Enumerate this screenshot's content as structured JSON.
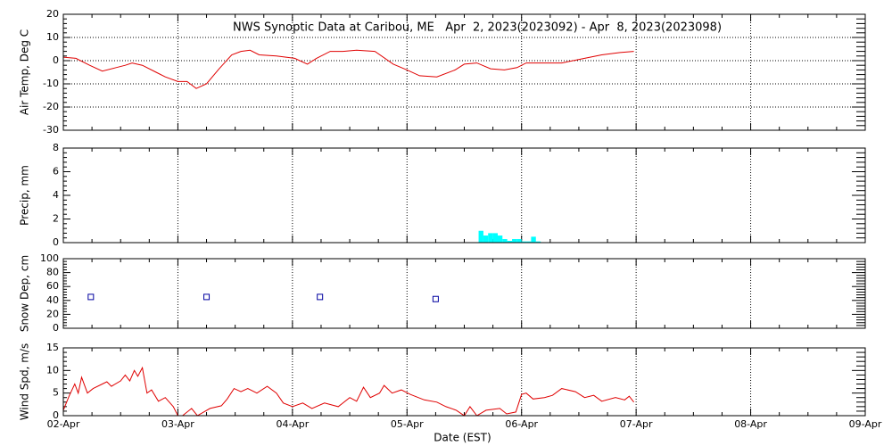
{
  "chart_data": [
    {
      "type": "line",
      "title": "NWS Synoptic Data at Caribou, ME   Apr  2, 2023(2023092) - Apr  8, 2023(2023098)",
      "ylabel": "Air Temp, Deg C",
      "color": "#e00000",
      "grid": "both",
      "ylim": [
        -30,
        20
      ],
      "yticks": [
        -30,
        -20,
        -10,
        0,
        10,
        20
      ],
      "x": [
        0,
        0.11,
        0.23,
        0.34,
        0.46,
        0.54,
        0.6,
        0.69,
        0.81,
        0.89,
        1.0,
        1.08,
        1.16,
        1.25,
        1.36,
        1.47,
        1.55,
        1.63,
        1.71,
        1.86,
        2.02,
        2.13,
        2.21,
        2.33,
        2.44,
        2.56,
        2.72,
        2.88,
        3.0,
        3.11,
        3.26,
        3.42,
        3.5,
        3.61,
        3.73,
        3.85,
        3.96,
        4.04,
        4.2,
        4.35,
        4.55,
        4.7,
        4.86,
        4.98
      ],
      "values": [
        1.5,
        1,
        -2,
        -4.5,
        -3,
        -2,
        -1,
        -2,
        -5,
        -7,
        -9,
        -9,
        -12,
        -10,
        -3.5,
        2.5,
        4,
        4.5,
        2.5,
        2,
        1,
        -1.5,
        1,
        4,
        4,
        4.5,
        4,
        -1.5,
        -4,
        -6.5,
        -7,
        -4,
        -1.5,
        -1,
        -3.5,
        -4,
        -3,
        -1,
        -1,
        -1,
        1,
        2.5,
        3.5,
        4
      ]
    },
    {
      "type": "histogram",
      "ylabel": "Precip, mm",
      "color": "#00ffff",
      "grid": "x",
      "ylim": [
        0,
        8
      ],
      "yticks": [
        0,
        2,
        4,
        6,
        8
      ],
      "bins": [
        3.625,
        3.667,
        3.708,
        3.75,
        3.792,
        3.833,
        3.875,
        3.917,
        3.958,
        4.0,
        4.042,
        4.083,
        4.125,
        4.167
      ],
      "values": [
        1.0,
        0.6,
        0.8,
        0.8,
        0.6,
        0.3,
        0.15,
        0.3,
        0.3,
        0.1,
        0.1,
        0.5,
        0.1
      ]
    },
    {
      "type": "scatter",
      "ylabel": "Snow Dep, cm",
      "color": "#0000a0",
      "marker": "square",
      "grid": "x",
      "ylim": [
        0,
        100
      ],
      "yticks": [
        0,
        20,
        40,
        60,
        80,
        100
      ],
      "x": [
        0.24,
        1.25,
        2.24,
        3.25
      ],
      "values": [
        45,
        45,
        45,
        42
      ]
    },
    {
      "type": "line",
      "ylabel": "Wind Spd, m/s",
      "xlabel": "Date (EST)",
      "color": "#e00000",
      "grid": "x",
      "ylim": [
        0,
        15
      ],
      "yticks": [
        0,
        5,
        10,
        15
      ],
      "xlim": [
        0,
        7
      ],
      "xticks": [
        {
          "value": 0,
          "label": "02-Apr"
        },
        {
          "value": 1,
          "label": "03-Apr"
        },
        {
          "value": 2,
          "label": "04-Apr"
        },
        {
          "value": 3,
          "label": "05-Apr"
        },
        {
          "value": 4,
          "label": "06-Apr"
        },
        {
          "value": 5,
          "label": "07-Apr"
        },
        {
          "value": 6,
          "label": "08-Apr"
        },
        {
          "value": 7,
          "label": "09-Apr"
        }
      ],
      "x": [
        0,
        0.05,
        0.1,
        0.13,
        0.16,
        0.21,
        0.26,
        0.34,
        0.38,
        0.42,
        0.5,
        0.54,
        0.58,
        0.62,
        0.65,
        0.69,
        0.73,
        0.77,
        0.83,
        0.89,
        0.96,
        1.0,
        1.04,
        1.12,
        1.17,
        1.28,
        1.38,
        1.43,
        1.49,
        1.55,
        1.61,
        1.69,
        1.78,
        1.86,
        1.92,
        2.0,
        2.09,
        2.17,
        2.28,
        2.4,
        2.5,
        2.56,
        2.62,
        2.68,
        2.76,
        2.8,
        2.87,
        2.95,
        3.03,
        3.15,
        3.26,
        3.34,
        3.43,
        3.5,
        3.55,
        3.61,
        3.69,
        3.81,
        3.87,
        3.95,
        4.0,
        4.04,
        4.1,
        4.2,
        4.27,
        4.35,
        4.47,
        4.55,
        4.63,
        4.7,
        4.82,
        4.9,
        4.94,
        4.98
      ],
      "values": [
        1.2,
        4.3,
        7,
        5,
        8.5,
        5,
        6,
        7,
        7.5,
        6.5,
        7.7,
        9,
        7.7,
        10,
        8.7,
        10.6,
        5,
        5.7,
        3.2,
        4,
        2,
        0,
        0,
        1.6,
        0,
        1.6,
        2.2,
        3.7,
        6,
        5.3,
        6,
        5,
        6.5,
        5,
        2.8,
        2,
        2.8,
        1.6,
        2.8,
        2,
        4,
        3.2,
        6.3,
        4,
        5,
        6.7,
        5,
        5.7,
        4.7,
        3.5,
        3,
        2,
        1.2,
        0,
        2,
        0,
        1.2,
        1.6,
        0.4,
        0.8,
        4.7,
        5,
        3.7,
        4,
        4.5,
        6,
        5.3,
        4,
        4.5,
        3.2,
        4,
        3.5,
        4.3,
        3
      ]
    }
  ]
}
